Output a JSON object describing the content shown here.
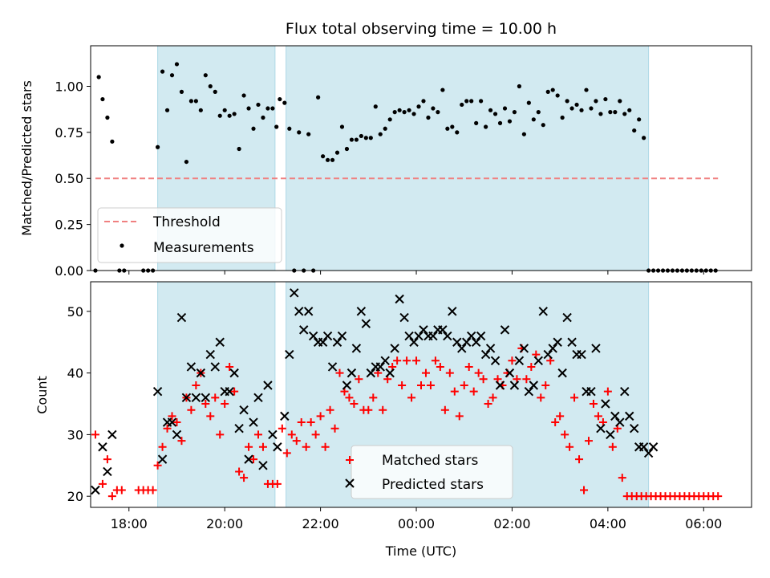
{
  "chart_data": [
    {
      "type": "scatter",
      "title": "Flux total observing time = 10.00 h",
      "xlabel": "",
      "ylabel": "Matched/Predicted stars",
      "xlim": [
        -6.8,
        7.0
      ],
      "ylim": [
        0.0,
        1.22
      ],
      "yticks": [
        0.0,
        0.25,
        0.5,
        0.75,
        1.0
      ],
      "yticklabels": [
        "0.00",
        "0.25",
        "0.50",
        "0.75",
        "1.00"
      ],
      "x_unit": "hours relative to 00:00 UTC",
      "grid": false,
      "legend_position": "lower-left",
      "shaded_spans": [
        [
          -5.4,
          -2.95
        ],
        [
          -2.72,
          4.85
        ]
      ],
      "shade_color": "#add8e6",
      "threshold": {
        "name": "Threshold",
        "value": 0.5,
        "x_range": [
          -6.7,
          6.3
        ],
        "color": "#f08080"
      },
      "series": [
        {
          "name": "Measurements",
          "marker": "dot",
          "color": "#000000",
          "x": [
            -6.7,
            -6.63,
            -6.55,
            -6.45,
            -6.35,
            -6.2,
            -6.1,
            -5.7,
            -5.6,
            -5.5,
            -5.4,
            -5.3,
            -5.2,
            -5.1,
            -5.0,
            -4.9,
            -4.8,
            -4.7,
            -4.6,
            -4.5,
            -4.4,
            -4.3,
            -4.2,
            -4.1,
            -4.0,
            -3.9,
            -3.8,
            -3.7,
            -3.6,
            -3.5,
            -3.4,
            -3.3,
            -3.2,
            -3.1,
            -3.0,
            -2.92,
            -2.85,
            -2.75,
            -2.65,
            -2.55,
            -2.45,
            -2.35,
            -2.25,
            -2.15,
            -2.05,
            -1.95,
            -1.85,
            -1.75,
            -1.65,
            -1.55,
            -1.45,
            -1.35,
            -1.25,
            -1.15,
            -1.05,
            -0.95,
            -0.85,
            -0.75,
            -0.65,
            -0.55,
            -0.45,
            -0.35,
            -0.25,
            -0.15,
            -0.05,
            0.05,
            0.15,
            0.25,
            0.35,
            0.45,
            0.55,
            0.65,
            0.75,
            0.85,
            0.95,
            1.05,
            1.15,
            1.25,
            1.35,
            1.45,
            1.55,
            1.65,
            1.75,
            1.85,
            1.95,
            2.05,
            2.15,
            2.25,
            2.35,
            2.45,
            2.55,
            2.65,
            2.75,
            2.85,
            2.95,
            3.05,
            3.15,
            3.25,
            3.35,
            3.45,
            3.55,
            3.65,
            3.75,
            3.85,
            3.95,
            4.05,
            4.15,
            4.25,
            4.35,
            4.45,
            4.55,
            4.65,
            4.75,
            4.85,
            4.95,
            5.05,
            5.15,
            5.25,
            5.35,
            5.45,
            5.55,
            5.65,
            5.75,
            5.85,
            5.95,
            6.05,
            6.15,
            6.25
          ],
          "y": [
            0.0,
            1.05,
            0.93,
            0.83,
            0.7,
            0.0,
            0.0,
            0.0,
            0.0,
            0.0,
            0.67,
            1.08,
            0.87,
            1.06,
            1.12,
            0.97,
            0.59,
            0.92,
            0.92,
            0.87,
            1.06,
            1.0,
            0.97,
            0.84,
            0.87,
            0.84,
            0.85,
            0.66,
            0.95,
            0.88,
            0.77,
            0.9,
            0.83,
            0.88,
            0.88,
            0.78,
            0.93,
            0.91,
            0.77,
            0.0,
            0.75,
            0.0,
            0.74,
            0.0,
            0.94,
            0.62,
            0.6,
            0.6,
            0.64,
            0.78,
            0.66,
            0.71,
            0.71,
            0.73,
            0.72,
            0.72,
            0.89,
            0.74,
            0.77,
            0.82,
            0.86,
            0.87,
            0.86,
            0.87,
            0.85,
            0.89,
            0.92,
            0.83,
            0.88,
            0.86,
            0.98,
            0.77,
            0.78,
            0.75,
            0.9,
            0.92,
            0.92,
            0.8,
            0.92,
            0.78,
            0.87,
            0.85,
            0.8,
            0.88,
            0.81,
            0.86,
            1.0,
            0.74,
            0.91,
            0.82,
            0.86,
            0.79,
            0.97,
            0.98,
            0.95,
            0.83,
            0.92,
            0.88,
            0.9,
            0.87,
            0.98,
            0.88,
            0.92,
            0.85,
            0.93,
            0.86,
            0.86,
            0.92,
            0.85,
            0.87,
            0.76,
            0.82,
            0.72,
            0.0,
            0.0,
            0.0,
            0.0,
            0.0,
            0.0,
            0.0,
            0.0,
            0.0,
            0.0,
            0.0,
            0.0,
            0.0,
            0.0,
            0.0
          ]
        }
      ]
    },
    {
      "type": "scatter",
      "title": "",
      "xlabel": "Time (UTC)",
      "ylabel": "Count",
      "xlim": [
        -6.8,
        7.0
      ],
      "ylim": [
        18.2,
        54.8
      ],
      "yticks": [
        20,
        30,
        40,
        50
      ],
      "yticklabels": [
        "20",
        "30",
        "40",
        "50"
      ],
      "xticks": [
        -6,
        -4,
        -2,
        0,
        2,
        4,
        6
      ],
      "xticklabels": [
        "18:00",
        "20:00",
        "22:00",
        "00:00",
        "02:00",
        "04:00",
        "06:00"
      ],
      "x_unit": "hours relative to 00:00 UTC",
      "grid": false,
      "legend_position": "lower-center",
      "shaded_spans": [
        [
          -5.4,
          -2.95
        ],
        [
          -2.72,
          4.85
        ]
      ],
      "shade_color": "#add8e6",
      "series": [
        {
          "name": "Matched stars",
          "marker": "plus",
          "color": "#ff0000",
          "x": [
            -6.7,
            -6.55,
            -6.45,
            -6.35,
            -6.25,
            -6.15,
            -5.8,
            -5.7,
            -5.6,
            -5.5,
            -5.4,
            -5.3,
            -5.2,
            -5.1,
            -5.0,
            -4.9,
            -4.8,
            -4.7,
            -4.6,
            -4.5,
            -4.4,
            -4.3,
            -4.2,
            -4.1,
            -4.0,
            -3.9,
            -3.8,
            -3.7,
            -3.6,
            -3.5,
            -3.4,
            -3.3,
            -3.2,
            -3.1,
            -3.0,
            -2.9,
            -2.8,
            -2.7,
            -2.6,
            -2.5,
            -2.4,
            -2.3,
            -2.2,
            -2.1,
            -2.0,
            -1.9,
            -1.8,
            -1.7,
            -1.6,
            -1.5,
            -1.4,
            -1.3,
            -1.2,
            -1.1,
            -1.0,
            -0.9,
            -0.8,
            -0.7,
            -0.6,
            -0.5,
            -0.4,
            -0.3,
            -0.2,
            -0.1,
            0.0,
            0.1,
            0.2,
            0.3,
            0.4,
            0.5,
            0.6,
            0.7,
            0.8,
            0.9,
            1.0,
            1.1,
            1.2,
            1.3,
            1.4,
            1.5,
            1.6,
            1.7,
            1.8,
            1.9,
            2.0,
            2.1,
            2.2,
            2.3,
            2.4,
            2.5,
            2.6,
            2.7,
            2.8,
            2.9,
            3.0,
            3.1,
            3.2,
            3.3,
            3.4,
            3.5,
            3.6,
            3.7,
            3.8,
            3.9,
            4.0,
            4.1,
            4.2,
            4.3,
            4.4,
            4.5,
            4.6,
            4.7,
            4.8,
            4.9,
            5.0,
            5.1,
            5.2,
            5.3,
            5.4,
            5.5,
            5.6,
            5.7,
            5.8,
            5.9,
            6.0,
            6.1,
            6.2,
            6.3
          ],
          "y": [
            30,
            22,
            26,
            20,
            21,
            21,
            21,
            21,
            21,
            21,
            25,
            28,
            31,
            33,
            32,
            29,
            36,
            34,
            38,
            40,
            35,
            33,
            36,
            30,
            35,
            41,
            37,
            24,
            23,
            28,
            26,
            30,
            28,
            22,
            22,
            22,
            31,
            27,
            30,
            29,
            32,
            28,
            32,
            30,
            33,
            28,
            34,
            31,
            40,
            37,
            36,
            35,
            39,
            34,
            34,
            36,
            40,
            34,
            39,
            41,
            42,
            38,
            42,
            36,
            42,
            38,
            40,
            38,
            42,
            41,
            34,
            40,
            37,
            33,
            38,
            41,
            37,
            40,
            39,
            35,
            36,
            39,
            38,
            40,
            42,
            39,
            44,
            39,
            41,
            43,
            36,
            38,
            42,
            32,
            33,
            30,
            28,
            36,
            26,
            21,
            29,
            35,
            33,
            32,
            37,
            28,
            31,
            23,
            20,
            20,
            20,
            20,
            20,
            20,
            20,
            20,
            20,
            20,
            20,
            20,
            20,
            20,
            20,
            20,
            20,
            20,
            20,
            20
          ]
        },
        {
          "name": "Predicted stars",
          "marker": "x",
          "color": "#000000",
          "x": [
            -6.7,
            -6.55,
            -6.45,
            -6.35,
            -5.4,
            -5.3,
            -5.2,
            -5.1,
            -5.0,
            -4.9,
            -4.8,
            -4.7,
            -4.6,
            -4.5,
            -4.4,
            -4.3,
            -4.2,
            -4.1,
            -4.0,
            -3.9,
            -3.8,
            -3.7,
            -3.6,
            -3.5,
            -3.4,
            -3.3,
            -3.2,
            -3.1,
            -3.0,
            -2.9,
            -2.75,
            -2.65,
            -2.55,
            -2.45,
            -2.35,
            -2.25,
            -2.15,
            -2.05,
            -1.95,
            -1.85,
            -1.75,
            -1.65,
            -1.55,
            -1.45,
            -1.35,
            -1.25,
            -1.15,
            -1.05,
            -0.95,
            -0.85,
            -0.75,
            -0.65,
            -0.55,
            -0.45,
            -0.35,
            -0.25,
            -0.15,
            -0.05,
            0.05,
            0.15,
            0.25,
            0.35,
            0.45,
            0.55,
            0.65,
            0.75,
            0.85,
            0.95,
            1.05,
            1.15,
            1.25,
            1.35,
            1.45,
            1.55,
            1.65,
            1.75,
            1.85,
            1.95,
            2.05,
            2.15,
            2.25,
            2.35,
            2.45,
            2.55,
            2.65,
            2.75,
            2.85,
            2.95,
            3.05,
            3.15,
            3.25,
            3.35,
            3.45,
            3.55,
            3.65,
            3.75,
            3.85,
            3.95,
            4.05,
            4.15,
            4.25,
            4.35,
            4.45,
            4.55,
            4.65,
            4.75,
            4.85,
            4.95
          ],
          "y": [
            21,
            28,
            24,
            30,
            37,
            26,
            32,
            32,
            30,
            49,
            36,
            41,
            36,
            40,
            36,
            43,
            41,
            45,
            37,
            37,
            40,
            31,
            34,
            26,
            32,
            36,
            25,
            38,
            30,
            28,
            33,
            43,
            53,
            50,
            47,
            50,
            46,
            45,
            45,
            46,
            41,
            45,
            46,
            38,
            40,
            44,
            50,
            48,
            40,
            41,
            41,
            42,
            40,
            44,
            52,
            49,
            46,
            45,
            46,
            47,
            46,
            46,
            47,
            47,
            46,
            50,
            45,
            44,
            45,
            46,
            45,
            46,
            43,
            44,
            42,
            38,
            47,
            40,
            38,
            42,
            44,
            37,
            38,
            42,
            50,
            43,
            44,
            45,
            40,
            49,
            45,
            43,
            43,
            37,
            37,
            44,
            31,
            35,
            30,
            33,
            32,
            37,
            33,
            31,
            28,
            28,
            27,
            28
          ]
        }
      ]
    }
  ]
}
